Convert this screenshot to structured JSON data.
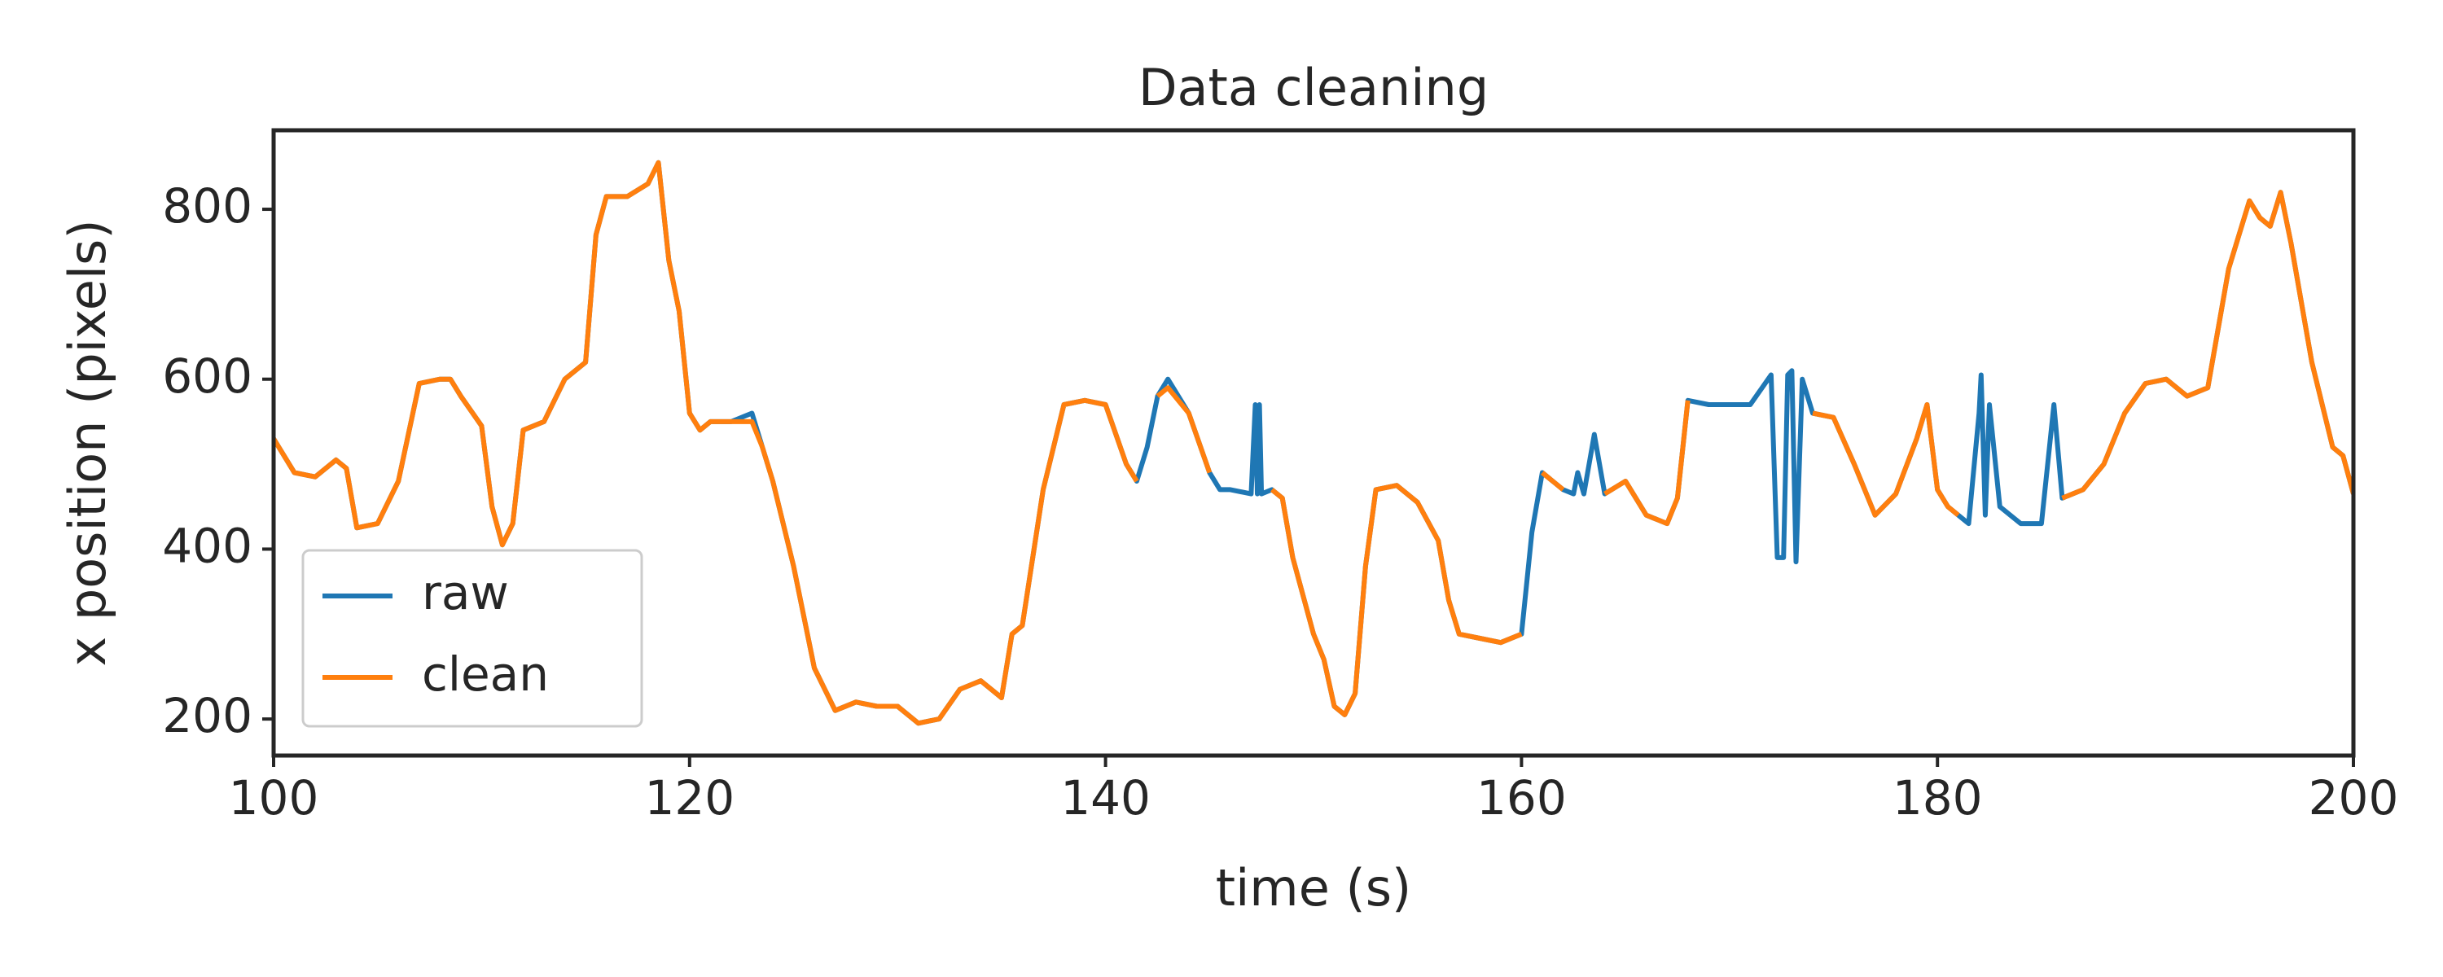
{
  "chart_data": {
    "type": "line",
    "title": "Data cleaning",
    "xlabel": "time (s)",
    "ylabel": "x position (pixels)",
    "x": [
      100,
      101,
      102,
      103,
      103.5,
      104,
      105,
      106,
      107,
      108,
      108.5,
      109,
      110,
      110.5,
      111,
      111.5,
      112,
      113,
      114,
      115,
      115.5,
      116,
      117,
      118,
      118.5,
      119,
      119.5,
      120,
      120.5,
      121,
      122,
      123,
      123.5,
      124,
      125,
      126,
      127,
      128,
      129,
      130,
      131,
      132,
      133,
      134,
      135,
      135.5,
      136,
      137,
      138,
      139,
      140,
      141,
      141.5,
      142,
      142.5,
      143,
      144,
      145,
      145.5,
      146,
      147,
      147.2,
      147.3,
      147.4,
      147.5,
      148,
      148.5,
      149,
      150,
      150.5,
      151,
      151.5,
      152,
      152.5,
      153,
      154,
      155,
      156,
      156.5,
      157,
      158,
      159,
      160,
      160.5,
      161,
      162,
      162.5,
      162.7,
      163,
      163.5,
      164,
      165,
      166,
      167,
      167.5,
      168,
      169,
      170,
      171,
      172,
      172.3,
      172.6,
      172.8,
      173,
      173.2,
      173.5,
      174,
      175,
      176,
      177,
      178,
      179,
      179.5,
      180,
      180.5,
      181,
      181.5,
      182,
      182.1,
      182.3,
      182.5,
      183,
      184,
      185,
      185.6,
      186,
      187,
      188,
      189,
      190,
      191,
      192,
      193,
      194,
      195,
      195.5,
      196,
      196.5,
      197,
      198,
      199,
      199.5,
      200
    ],
    "series": [
      {
        "name": "raw",
        "color": "#1f77b4",
        "values": [
          530,
          490,
          485,
          505,
          495,
          425,
          430,
          480,
          595,
          600,
          600,
          580,
          545,
          450,
          405,
          430,
          540,
          550,
          600,
          620,
          770,
          815,
          815,
          830,
          855,
          740,
          680,
          560,
          540,
          550,
          550,
          560,
          520,
          480,
          380,
          260,
          210,
          220,
          215,
          215,
          195,
          200,
          235,
          245,
          225,
          300,
          310,
          470,
          570,
          575,
          570,
          500,
          480,
          520,
          580,
          600,
          560,
          490,
          470,
          470,
          465,
          570,
          465,
          570,
          465,
          470,
          460,
          390,
          300,
          270,
          215,
          205,
          230,
          380,
          470,
          475,
          455,
          410,
          340,
          300,
          295,
          290,
          300,
          420,
          490,
          470,
          465,
          490,
          465,
          535,
          465,
          480,
          440,
          430,
          460,
          575,
          570,
          570,
          570,
          605,
          390,
          390,
          605,
          610,
          385,
          600,
          560,
          555,
          500,
          440,
          465,
          530,
          570,
          470,
          450,
          440,
          430,
          560,
          605,
          440,
          570,
          450,
          430,
          430,
          570,
          460,
          470,
          500,
          560,
          595,
          600,
          580,
          590,
          730,
          810,
          790,
          780,
          820,
          760,
          620,
          520,
          510,
          465
        ]
      },
      {
        "name": "clean",
        "color": "#ff7f0e",
        "values": [
          530,
          490,
          485,
          505,
          495,
          425,
          430,
          480,
          595,
          600,
          600,
          580,
          545,
          450,
          405,
          430,
          540,
          550,
          600,
          620,
          770,
          815,
          815,
          830,
          855,
          740,
          680,
          560,
          540,
          550,
          550,
          550,
          520,
          480,
          380,
          260,
          210,
          220,
          215,
          215,
          195,
          200,
          235,
          245,
          225,
          300,
          310,
          470,
          570,
          575,
          570,
          500,
          480,
          null,
          580,
          590,
          560,
          490,
          null,
          null,
          null,
          null,
          null,
          null,
          null,
          470,
          460,
          390,
          300,
          270,
          215,
          205,
          230,
          380,
          470,
          475,
          455,
          410,
          340,
          300,
          295,
          290,
          300,
          null,
          490,
          470,
          null,
          null,
          null,
          null,
          465,
          480,
          440,
          430,
          460,
          575,
          null,
          null,
          null,
          null,
          null,
          null,
          null,
          null,
          null,
          null,
          560,
          555,
          500,
          440,
          465,
          530,
          570,
          470,
          450,
          440,
          null,
          null,
          null,
          null,
          null,
          null,
          null,
          null,
          null,
          460,
          470,
          500,
          560,
          595,
          600,
          580,
          590,
          730,
          810,
          790,
          780,
          820,
          760,
          620,
          520,
          510,
          465
        ]
      }
    ],
    "xlim": [
      100,
      200
    ],
    "xticks": [
      100,
      120,
      140,
      160,
      180,
      200
    ],
    "ylim": [
      157,
      893
    ],
    "yticks": [
      200,
      400,
      600,
      800
    ],
    "legend": "lower left"
  }
}
